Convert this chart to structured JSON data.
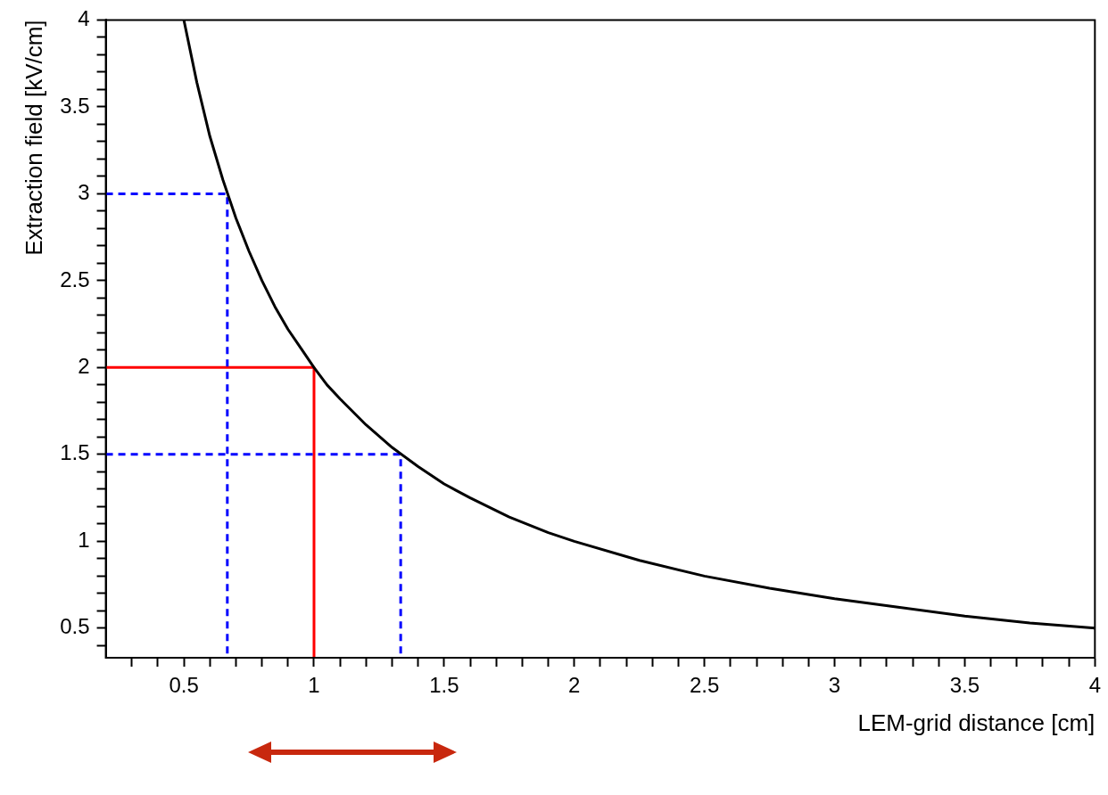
{
  "chart_data": {
    "type": "line",
    "xlabel": "LEM-grid distance [cm]",
    "ylabel": "Extraction field [kV/cm]",
    "xlim": [
      0.2,
      4
    ],
    "ylim": [
      0.33,
      4
    ],
    "xticks": [
      {
        "value": 0.3,
        "label": null
      },
      {
        "value": 0.4,
        "label": null
      },
      0.5,
      {
        "value": 0.6,
        "label": null
      },
      {
        "value": 0.7,
        "label": null
      },
      {
        "value": 0.8,
        "label": null
      },
      {
        "value": 0.9,
        "label": null
      },
      1,
      {
        "value": 1.1,
        "label": null
      },
      {
        "value": 1.2,
        "label": null
      },
      {
        "value": 1.3,
        "label": null
      },
      {
        "value": 1.4,
        "label": null
      },
      1.5,
      {
        "value": 1.6,
        "label": null
      },
      {
        "value": 1.7,
        "label": null
      },
      {
        "value": 1.8,
        "label": null
      },
      {
        "value": 1.9,
        "label": null
      },
      2,
      {
        "value": 2.1,
        "label": null
      },
      {
        "value": 2.2,
        "label": null
      },
      {
        "value": 2.3,
        "label": null
      },
      {
        "value": 2.4,
        "label": null
      },
      2.5,
      {
        "value": 2.6,
        "label": null
      },
      {
        "value": 2.7,
        "label": null
      },
      {
        "value": 2.8,
        "label": null
      },
      {
        "value": 2.9,
        "label": null
      },
      3,
      {
        "value": 3.1,
        "label": null
      },
      {
        "value": 3.2,
        "label": null
      },
      {
        "value": 3.3,
        "label": null
      },
      {
        "value": 3.4,
        "label": null
      },
      3.5,
      {
        "value": 3.6,
        "label": null
      },
      {
        "value": 3.7,
        "label": null
      },
      {
        "value": 3.8,
        "label": null
      },
      {
        "value": 3.9,
        "label": null
      },
      4
    ],
    "yticks": [
      {
        "value": 0.4,
        "label": null
      },
      0.5,
      {
        "value": 0.6,
        "label": null
      },
      {
        "value": 0.7,
        "label": null
      },
      {
        "value": 0.8,
        "label": null
      },
      {
        "value": 0.9,
        "label": null
      },
      1,
      {
        "value": 1.1,
        "label": null
      },
      {
        "value": 1.2,
        "label": null
      },
      {
        "value": 1.3,
        "label": null
      },
      {
        "value": 1.4,
        "label": null
      },
      1.5,
      {
        "value": 1.6,
        "label": null
      },
      {
        "value": 1.7,
        "label": null
      },
      {
        "value": 1.8,
        "label": null
      },
      {
        "value": 1.9,
        "label": null
      },
      2,
      {
        "value": 2.1,
        "label": null
      },
      {
        "value": 2.2,
        "label": null
      },
      {
        "value": 2.3,
        "label": null
      },
      {
        "value": 2.4,
        "label": null
      },
      2.5,
      {
        "value": 2.6,
        "label": null
      },
      {
        "value": 2.7,
        "label": null
      },
      {
        "value": 2.8,
        "label": null
      },
      {
        "value": 2.9,
        "label": null
      },
      3,
      {
        "value": 3.1,
        "label": null
      },
      {
        "value": 3.2,
        "label": null
      },
      {
        "value": 3.3,
        "label": null
      },
      {
        "value": 3.4,
        "label": null
      },
      3.5,
      {
        "value": 3.6,
        "label": null
      },
      {
        "value": 3.7,
        "label": null
      },
      {
        "value": 3.8,
        "label": null
      },
      {
        "value": 3.9,
        "label": null
      },
      4
    ],
    "grid": false,
    "legend": false,
    "marker": "none",
    "series": [
      {
        "color": "#000000",
        "line_style": "solid",
        "x": [
          0.5,
          0.55,
          0.6,
          0.65,
          0.7,
          0.75,
          0.8,
          0.85,
          0.9,
          0.95,
          1,
          1.05,
          1.1,
          1.2,
          1.3,
          1.4,
          1.5,
          1.6,
          1.75,
          1.9,
          2,
          2.25,
          2.5,
          2.75,
          3,
          3.25,
          3.5,
          3.75,
          4
        ],
        "values": [
          4,
          3.64,
          3.33,
          3.08,
          2.86,
          2.67,
          2.5,
          2.35,
          2.22,
          2.11,
          2,
          1.9,
          1.82,
          1.67,
          1.54,
          1.43,
          1.33,
          1.25,
          1.14,
          1.05,
          1,
          0.89,
          0.8,
          0.73,
          0.67,
          0.62,
          0.57,
          0.53,
          0.5
        ]
      },
      {
        "color": "#0000ff",
        "line_style": "dashed",
        "x": [
          0.2,
          0.667,
          0.667
        ],
        "values": [
          3,
          3,
          0.33
        ]
      },
      {
        "color": "#0000ff",
        "line_style": "dashed",
        "x": [
          0.2,
          1.333,
          1.333
        ],
        "values": [
          1.5,
          1.5,
          0.33
        ]
      },
      {
        "color": "#ff0000",
        "line_style": "solid",
        "x": [
          0.2,
          1,
          1
        ],
        "values": [
          2,
          2,
          0.33
        ]
      }
    ]
  }
}
